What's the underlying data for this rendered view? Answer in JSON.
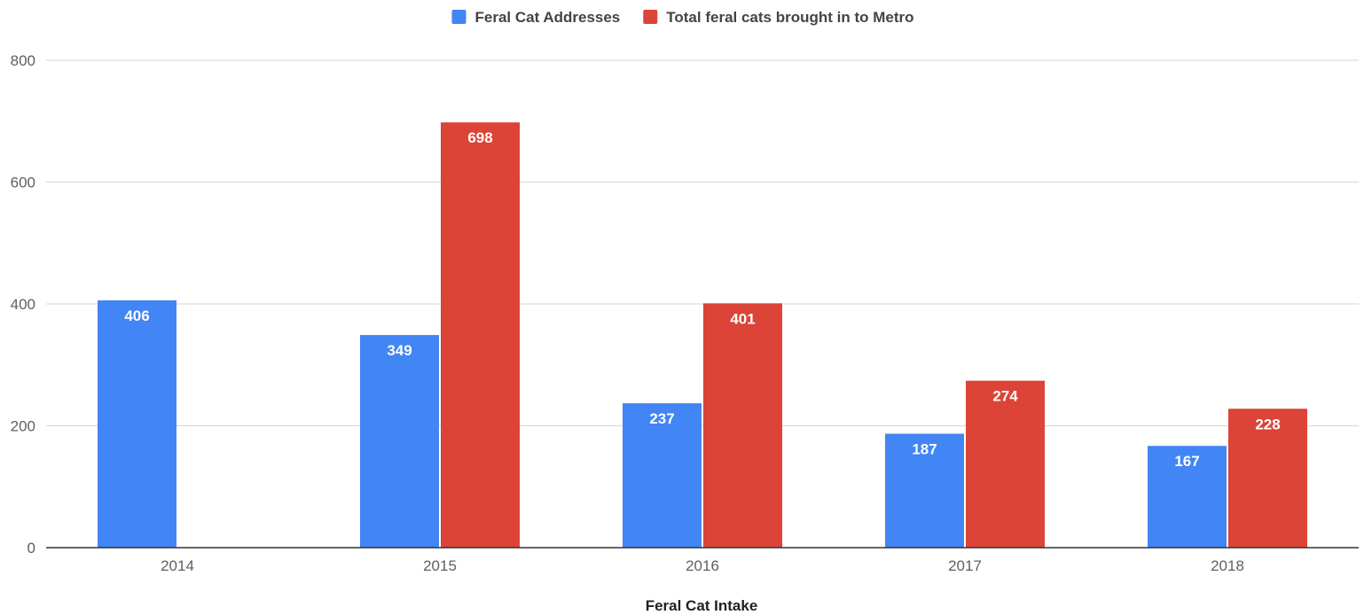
{
  "chart_data": {
    "type": "bar",
    "title": "",
    "xlabel": "Feral Cat Intake",
    "ylabel": "",
    "categories": [
      "2014",
      "2015",
      "2016",
      "2017",
      "2018"
    ],
    "series": [
      {
        "name": "Feral Cat Addresses",
        "color": "#4285f4",
        "values": [
          406,
          349,
          237,
          187,
          167
        ]
      },
      {
        "name": "Total feral cats brought in to Metro",
        "color": "#db4437",
        "values": [
          null,
          698,
          401,
          274,
          228
        ]
      }
    ],
    "ylim": [
      0,
      800
    ],
    "yticks": [
      0,
      200,
      400,
      600,
      800
    ],
    "grid": true,
    "legend_position": "top-center",
    "data_labels": true
  }
}
